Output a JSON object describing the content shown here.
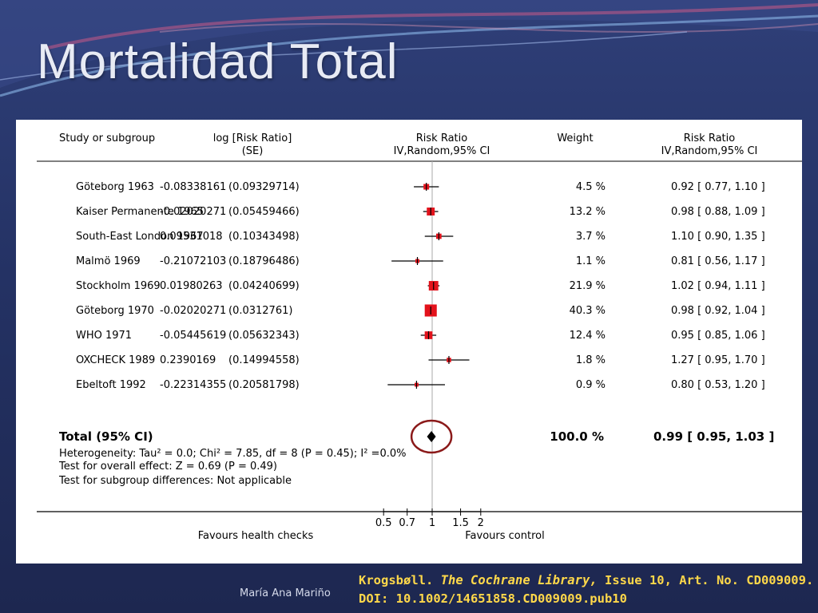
{
  "slide": {
    "title": "Mortalidad Total",
    "author": "María Ana Mariño",
    "citation": {
      "authors": "Krogsbøll.",
      "journal": "The Cochrane Library,",
      "rest": "Issue 10, Art. No. CD009009. DOI: 10.1002/14651858.CD009009.pub10"
    }
  },
  "chart_data": {
    "type": "scatter",
    "headers": {
      "study": "Study or subgroup",
      "logrr": [
        "log [Risk Ratio]",
        "(SE)"
      ],
      "rr_plot": [
        "Risk Ratio",
        "IV,Random,95% CI"
      ],
      "weight": "Weight",
      "rr_text": [
        "Risk Ratio",
        "IV,Random,95% CI"
      ]
    },
    "studies": [
      {
        "name": "Göteborg 1963",
        "logrr": "-0.08338161",
        "se": "(0.09329714)",
        "rr": 0.92,
        "lo": 0.77,
        "hi": 1.1,
        "weight": 4.5,
        "weight_label": "4.5 %",
        "ci_label": "0.92 [ 0.77, 1.10 ]"
      },
      {
        "name": "Kaiser Permanente 1965",
        "logrr": "-0.02020271",
        "se": "(0.05459466)",
        "rr": 0.98,
        "lo": 0.88,
        "hi": 1.09,
        "weight": 13.2,
        "weight_label": "13.2 %",
        "ci_label": "0.98 [ 0.88, 1.09 ]"
      },
      {
        "name": "South-East London 1967",
        "logrr": "0.09531018",
        "se": "(0.10343498)",
        "rr": 1.1,
        "lo": 0.9,
        "hi": 1.35,
        "weight": 3.7,
        "weight_label": "3.7 %",
        "ci_label": "1.10 [ 0.90, 1.35 ]"
      },
      {
        "name": "Malmö 1969",
        "logrr": "-0.21072103",
        "se": "(0.18796486)",
        "rr": 0.81,
        "lo": 0.56,
        "hi": 1.17,
        "weight": 1.1,
        "weight_label": "1.1 %",
        "ci_label": "0.81 [ 0.56, 1.17 ]"
      },
      {
        "name": "Stockholm 1969",
        "logrr": "0.01980263",
        "se": "(0.04240699)",
        "rr": 1.02,
        "lo": 0.94,
        "hi": 1.11,
        "weight": 21.9,
        "weight_label": "21.9 %",
        "ci_label": "1.02 [ 0.94, 1.11 ]"
      },
      {
        "name": "Göteborg 1970",
        "logrr": "-0.02020271",
        "se": "(0.0312761)",
        "rr": 0.98,
        "lo": 0.92,
        "hi": 1.04,
        "weight": 40.3,
        "weight_label": "40.3 %",
        "ci_label": "0.98 [ 0.92, 1.04 ]"
      },
      {
        "name": "WHO 1971",
        "logrr": "-0.05445619",
        "se": "(0.05632343)",
        "rr": 0.95,
        "lo": 0.85,
        "hi": 1.06,
        "weight": 12.4,
        "weight_label": "12.4 %",
        "ci_label": "0.95 [ 0.85, 1.06 ]"
      },
      {
        "name": "OXCHECK 1989",
        "logrr": "0.2390169",
        "se": "(0.14994558)",
        "rr": 1.27,
        "lo": 0.95,
        "hi": 1.7,
        "weight": 1.8,
        "weight_label": "1.8 %",
        "ci_label": "1.27 [ 0.95, 1.70 ]"
      },
      {
        "name": "Ebeltoft 1992",
        "logrr": "-0.22314355",
        "se": "(0.20581798)",
        "rr": 0.8,
        "lo": 0.53,
        "hi": 1.2,
        "weight": 0.9,
        "weight_label": "0.9 %",
        "ci_label": "0.80 [ 0.53, 1.20 ]"
      }
    ],
    "total": {
      "label": "Total (95% CI)",
      "rr": 0.99,
      "lo": 0.95,
      "hi": 1.03,
      "weight_label": "100.0 %",
      "ci_label": "0.99 [ 0.95, 1.03 ]",
      "heterogeneity": "Heterogeneity: Tau² = 0.0; Chi² = 7.85, df = 8 (P = 0.45); I² =0.0%",
      "overall_effect": "Test for overall effect: Z = 0.69 (P = 0.49)",
      "subgroup": "Test for subgroup differences: Not applicable"
    },
    "x_axis": {
      "scale": "log",
      "ticks": [
        0.5,
        0.7,
        1,
        1.5,
        2
      ],
      "tick_labels": [
        "0.5",
        "0.7",
        "1",
        "1.5",
        "2"
      ],
      "left_label": "Favours health checks",
      "right_label": "Favours control"
    },
    "colors": {
      "marker": "#e3121b",
      "highlight": "#8b1a1a"
    }
  }
}
